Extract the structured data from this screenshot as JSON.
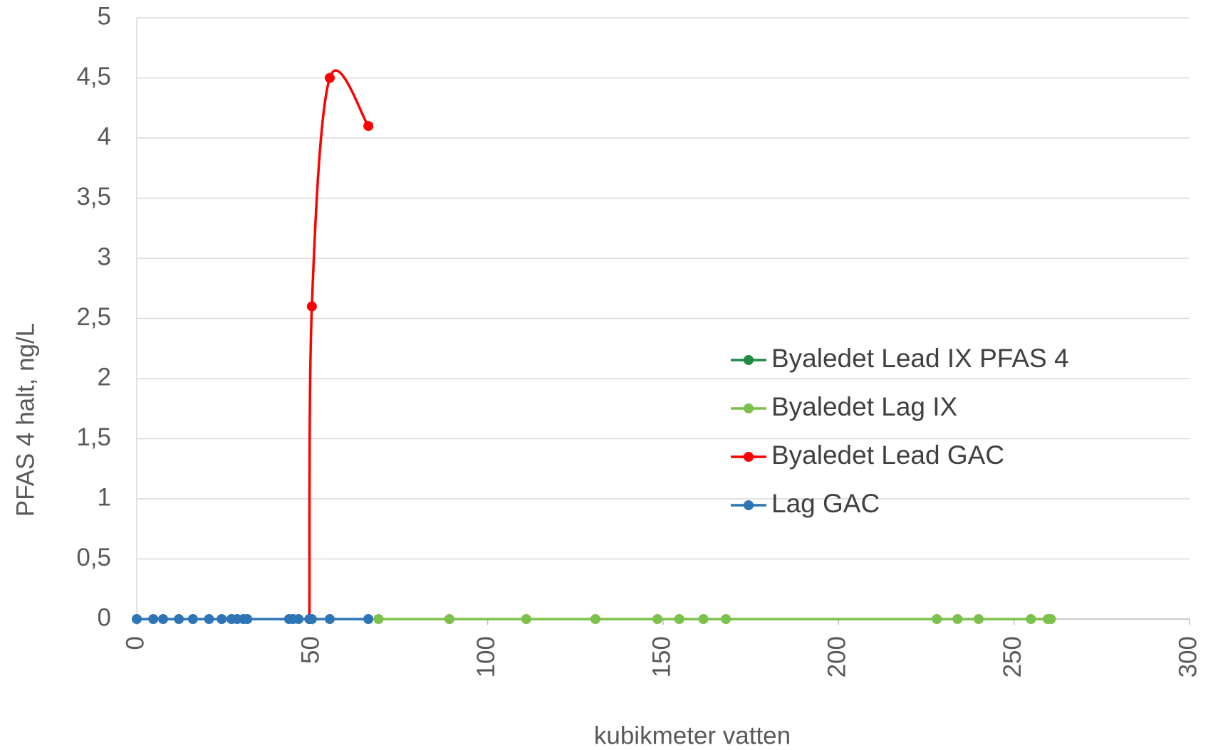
{
  "chart_data": {
    "type": "line",
    "smooth": true,
    "xlabel": "kubikmeter vatten",
    "ylabel": "PFAS 4 halt, ng/L",
    "xlim": [
      0,
      300
    ],
    "xticks": [
      0,
      50,
      100,
      150,
      200,
      250,
      300
    ],
    "ylim": [
      0,
      5
    ],
    "yticks": [
      0,
      {
        "value": 0.5,
        "label": "0,5"
      },
      1,
      {
        "value": 1.5,
        "label": "1,5"
      },
      2,
      {
        "value": 2.5,
        "label": "2,5"
      },
      3,
      {
        "value": 3.5,
        "label": "3,5"
      },
      4,
      {
        "value": 4.5,
        "label": "4,5"
      },
      5
    ],
    "grid": true,
    "legend": "right",
    "series": [
      {
        "name": "Byaledet Lead IX PFAS 4",
        "color": "#1e8c45",
        "x": [],
        "values": []
      },
      {
        "name": "Byaledet Lag IX",
        "color": "#7cc14b",
        "x": [
          68.9,
          89.1,
          111,
          130.7,
          148.4,
          154.6,
          161.5,
          167.9,
          228,
          233.9,
          239.9,
          254.8,
          259.6,
          260.5
        ],
        "values": [
          0,
          0,
          0,
          0,
          0,
          0,
          0,
          0,
          0,
          0,
          0,
          0,
          0,
          0
        ]
      },
      {
        "name": "Byaledet Lead GAC",
        "color": "#ff0000",
        "x": [
          49.2,
          49.9,
          55,
          66
        ],
        "values": [
          0,
          2.6,
          4.5,
          4.1
        ]
      },
      {
        "name": "Lag GAC",
        "color": "#2e75b6",
        "x": [
          0,
          4.7,
          7.5,
          12,
          16,
          20.6,
          24.2,
          27,
          28.6,
          30.4,
          31.5,
          43.4,
          44.5,
          46.1,
          49.2,
          49.9,
          55,
          66
        ],
        "values": [
          0,
          0,
          0,
          0,
          0,
          0,
          0,
          0,
          0,
          0,
          0,
          0,
          0,
          0,
          0,
          0,
          0,
          0
        ]
      }
    ]
  }
}
